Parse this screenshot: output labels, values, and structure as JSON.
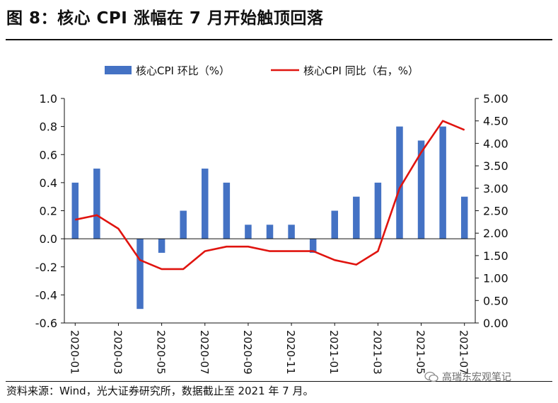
{
  "figure": {
    "title": "图 8：核心 CPI 涨幅在 7 月开始触顶回落",
    "source": "资料来源：Wind，光大证券研究所，数据截止至 2021 年 7 月。",
    "watermark": "高瑞东宏观笔记",
    "watermark_icon": "wechat-icon"
  },
  "colors": {
    "bar": "#4472c4",
    "line": "#e0140f",
    "axis": "#111111"
  },
  "chart_data": {
    "type": "bar",
    "categories": [
      "2020-01",
      "2020-02",
      "2020-03",
      "2020-04",
      "2020-05",
      "2020-06",
      "2020-07",
      "2020-08",
      "2020-09",
      "2020-10",
      "2020-11",
      "2020-12",
      "2021-01",
      "2021-02",
      "2021-03",
      "2021-04",
      "2021-05",
      "2021-06",
      "2021-07"
    ],
    "tick_labels": [
      "2020-01",
      "2020-03",
      "2020-05",
      "2020-07",
      "2020-09",
      "2020-11",
      "2021-01",
      "2021-03",
      "2021-05",
      "2021-07"
    ],
    "tick_indices": [
      0,
      2,
      4,
      6,
      8,
      10,
      12,
      14,
      16,
      18
    ],
    "series": [
      {
        "name": "核心CPI 环比（%）",
        "type": "bar",
        "axis": "left",
        "values": [
          0.4,
          0.5,
          0.0,
          -0.5,
          -0.1,
          0.2,
          0.5,
          0.4,
          0.1,
          0.1,
          0.1,
          -0.1,
          0.2,
          0.3,
          0.4,
          0.8,
          0.7,
          0.8,
          0.3
        ]
      },
      {
        "name": "核心CPI 同比（右，%）",
        "type": "line",
        "axis": "right",
        "values": [
          2.3,
          2.4,
          2.1,
          1.4,
          1.2,
          1.2,
          1.6,
          1.7,
          1.7,
          1.6,
          1.6,
          1.6,
          1.4,
          1.3,
          1.6,
          3.0,
          3.8,
          4.5,
          4.3
        ]
      }
    ],
    "y_left": {
      "lim": [
        -0.6,
        1.0
      ],
      "ticks": [
        -0.6,
        -0.4,
        -0.2,
        0.0,
        0.2,
        0.4,
        0.6,
        0.8,
        1.0
      ],
      "tick_labels": [
        "-0.6",
        "-0.4",
        "-0.2",
        "0.0",
        "0.2",
        "0.4",
        "0.6",
        "0.8",
        "1.0"
      ]
    },
    "y_right": {
      "lim": [
        0.0,
        5.0
      ],
      "ticks": [
        0.0,
        0.5,
        1.0,
        1.5,
        2.0,
        2.5,
        3.0,
        3.5,
        4.0,
        4.5,
        5.0
      ],
      "tick_labels": [
        "0.00",
        "0.50",
        "1.00",
        "1.50",
        "2.00",
        "2.50",
        "3.00",
        "3.50",
        "4.00",
        "4.50",
        "5.00"
      ]
    },
    "legend_position": "top-center",
    "grid": false,
    "xlabel": "",
    "ylabel": ""
  }
}
